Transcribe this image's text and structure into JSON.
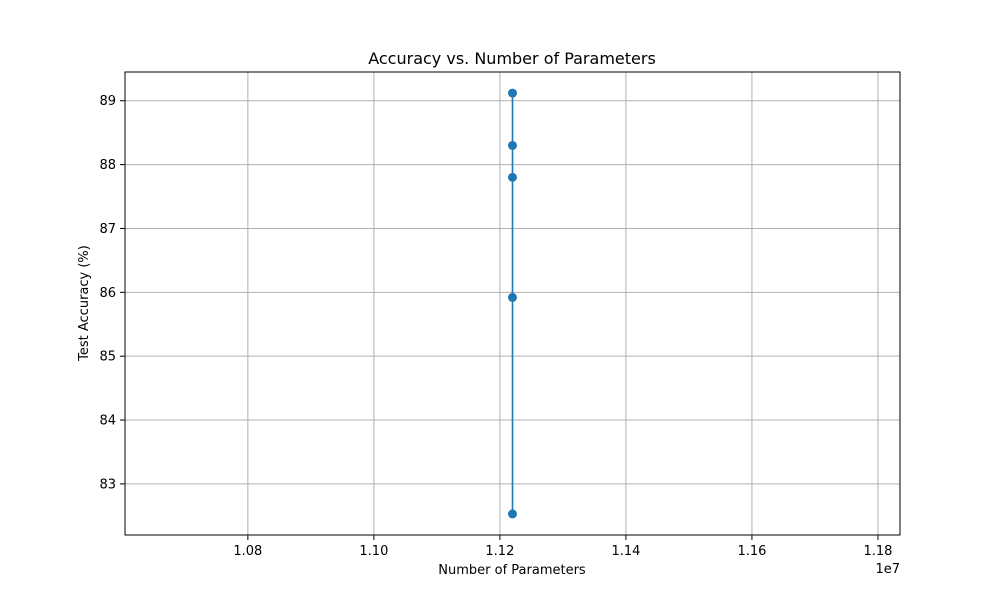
{
  "chart_data": {
    "type": "line",
    "title": "Accuracy vs. Number of Parameters",
    "xlabel": "Number of Parameters",
    "ylabel": "Test Accuracy (%)",
    "x_offset_label": "1e7",
    "xlim": [
      1.0605,
      1.1835
    ],
    "ylim": [
      82.2,
      89.45
    ],
    "xticks": [
      1.08,
      1.1,
      1.12,
      1.14,
      1.16,
      1.18
    ],
    "xtick_labels": [
      "1.08",
      "1.10",
      "1.12",
      "1.14",
      "1.16",
      "1.18"
    ],
    "yticks": [
      83,
      84,
      85,
      86,
      87,
      88,
      89
    ],
    "ytick_labels": [
      "83",
      "84",
      "85",
      "86",
      "87",
      "88",
      "89"
    ],
    "grid": true,
    "series": [
      {
        "color": "#1f77b4",
        "marker": "circle",
        "x": [
          1.122,
          1.122,
          1.122,
          1.122,
          1.122
        ],
        "y": [
          89.12,
          88.3,
          87.8,
          85.92,
          82.53
        ]
      }
    ]
  }
}
